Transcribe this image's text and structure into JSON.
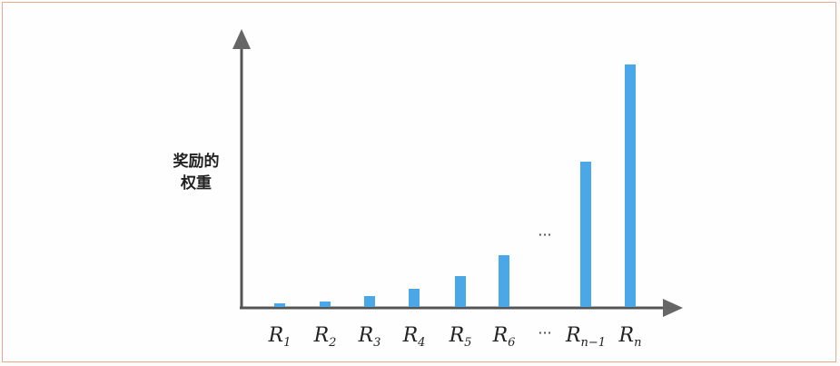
{
  "chart_data": {
    "type": "bar",
    "ylabel_lines": [
      "奖励的",
      "权重"
    ],
    "xlabel": "",
    "title": "",
    "categories": [
      {
        "base": "R",
        "sub": "1"
      },
      {
        "base": "R",
        "sub": "2"
      },
      {
        "base": "R",
        "sub": "3"
      },
      {
        "base": "R",
        "sub": "4"
      },
      {
        "base": "R",
        "sub": "5"
      },
      {
        "base": "R",
        "sub": "6"
      },
      {
        "base": "…",
        "sub": ""
      },
      {
        "base": "R",
        "sub": "n−1"
      },
      {
        "base": "R",
        "sub": "n"
      }
    ],
    "values": [
      4,
      6,
      12,
      20,
      34,
      57,
      null,
      160,
      267
    ],
    "gap_marker": "···",
    "ylim": [
      0,
      300
    ],
    "grid": false,
    "bar_color": "#4aa8e8",
    "axis_color": "#555555"
  }
}
